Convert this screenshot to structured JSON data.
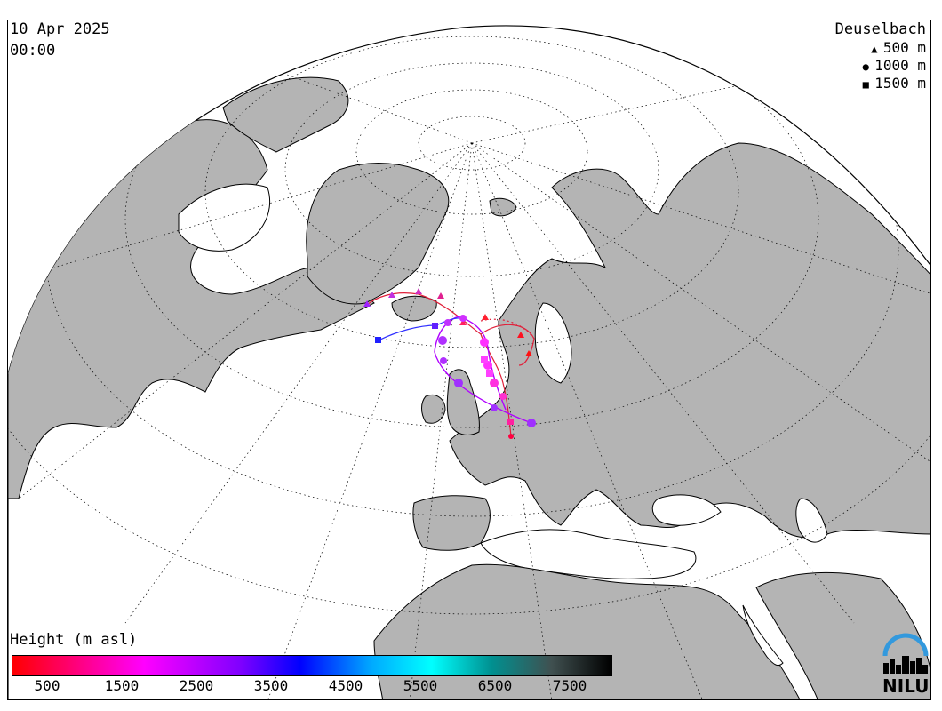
{
  "header": {
    "date": "10 Apr 2025",
    "time": "00:00"
  },
  "station": {
    "name": "Deuselbach"
  },
  "height_legend": [
    {
      "symbol": "triangle",
      "label": "500 m"
    },
    {
      "symbol": "circle",
      "label": "1000 m"
    },
    {
      "symbol": "square",
      "label": "1500 m"
    }
  ],
  "colorbar": {
    "title": "Height (m asl)",
    "ticks": [
      "500",
      "1500",
      "2500",
      "3500",
      "4500",
      "5500",
      "6500",
      "7500"
    ],
    "colors": [
      "#ff0000",
      "#ff00ff",
      "#8000ff",
      "#0000ff",
      "#00aaff",
      "#00ffff",
      "#009090",
      "#000000"
    ]
  },
  "logo": {
    "text": "NILU"
  },
  "colors": {
    "land": "#b4b4b4",
    "sea": "#ffffff",
    "coast": "#000000",
    "trajectory_500": "#e0203a",
    "trajectory_1000": "#b000ff",
    "trajectory_1500": "#3030ff",
    "logo_arc": "#3399dd"
  }
}
